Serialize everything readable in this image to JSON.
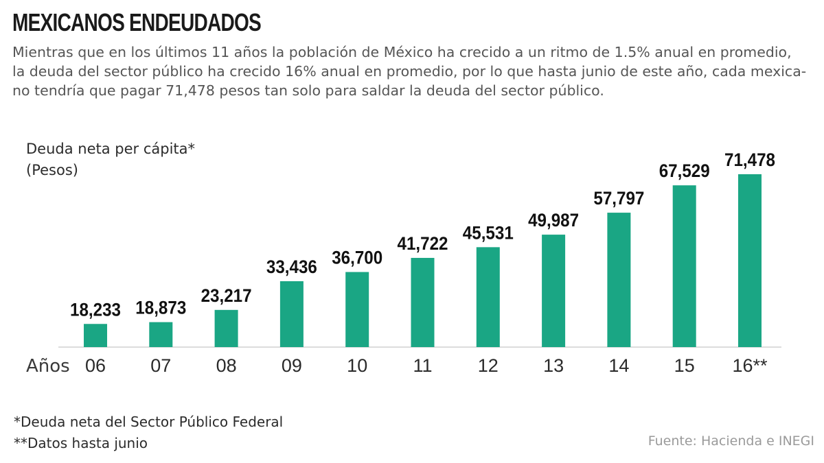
{
  "header": {
    "title": "MEXICANOS ENDEUDADOS",
    "subtitle_lines": [
      "Mientras que en los últimos 11 años la población de México ha crecido a un ritmo de 1.5% anual en promedio,",
      "la deuda del sector público ha crecido 16% anual en promedio, por lo que hasta junio de este año, cada mexica-",
      "no tendría que pagar 71,478 pesos tan solo para saldar la deuda del sector público."
    ]
  },
  "chart_data": {
    "type": "bar",
    "title": "MEXICANOS ENDEUDADOS",
    "ylabel_lines": [
      "Deuda neta per cápita*",
      "(Pesos)"
    ],
    "xlabel": "Años",
    "categories": [
      "06",
      "07",
      "08",
      "09",
      "10",
      "11",
      "12",
      "13",
      "14",
      "15",
      "16**"
    ],
    "values": [
      18233,
      18873,
      23217,
      33436,
      36700,
      41722,
      45531,
      49987,
      57797,
      67529,
      71478
    ],
    "value_labels": [
      "18,233",
      "18,873",
      "23,217",
      "33,436",
      "36,700",
      "41,722",
      "45,531",
      "49,987",
      "57,797",
      "67,529",
      "71,478"
    ],
    "ylim": [
      10000,
      71478
    ],
    "bar_color": "#1aa684",
    "grid": false
  },
  "footnotes": [
    "*Deuda neta del Sector Público Federal",
    "**Datos hasta junio"
  ],
  "source": "Fuente: Hacienda e INEGI"
}
